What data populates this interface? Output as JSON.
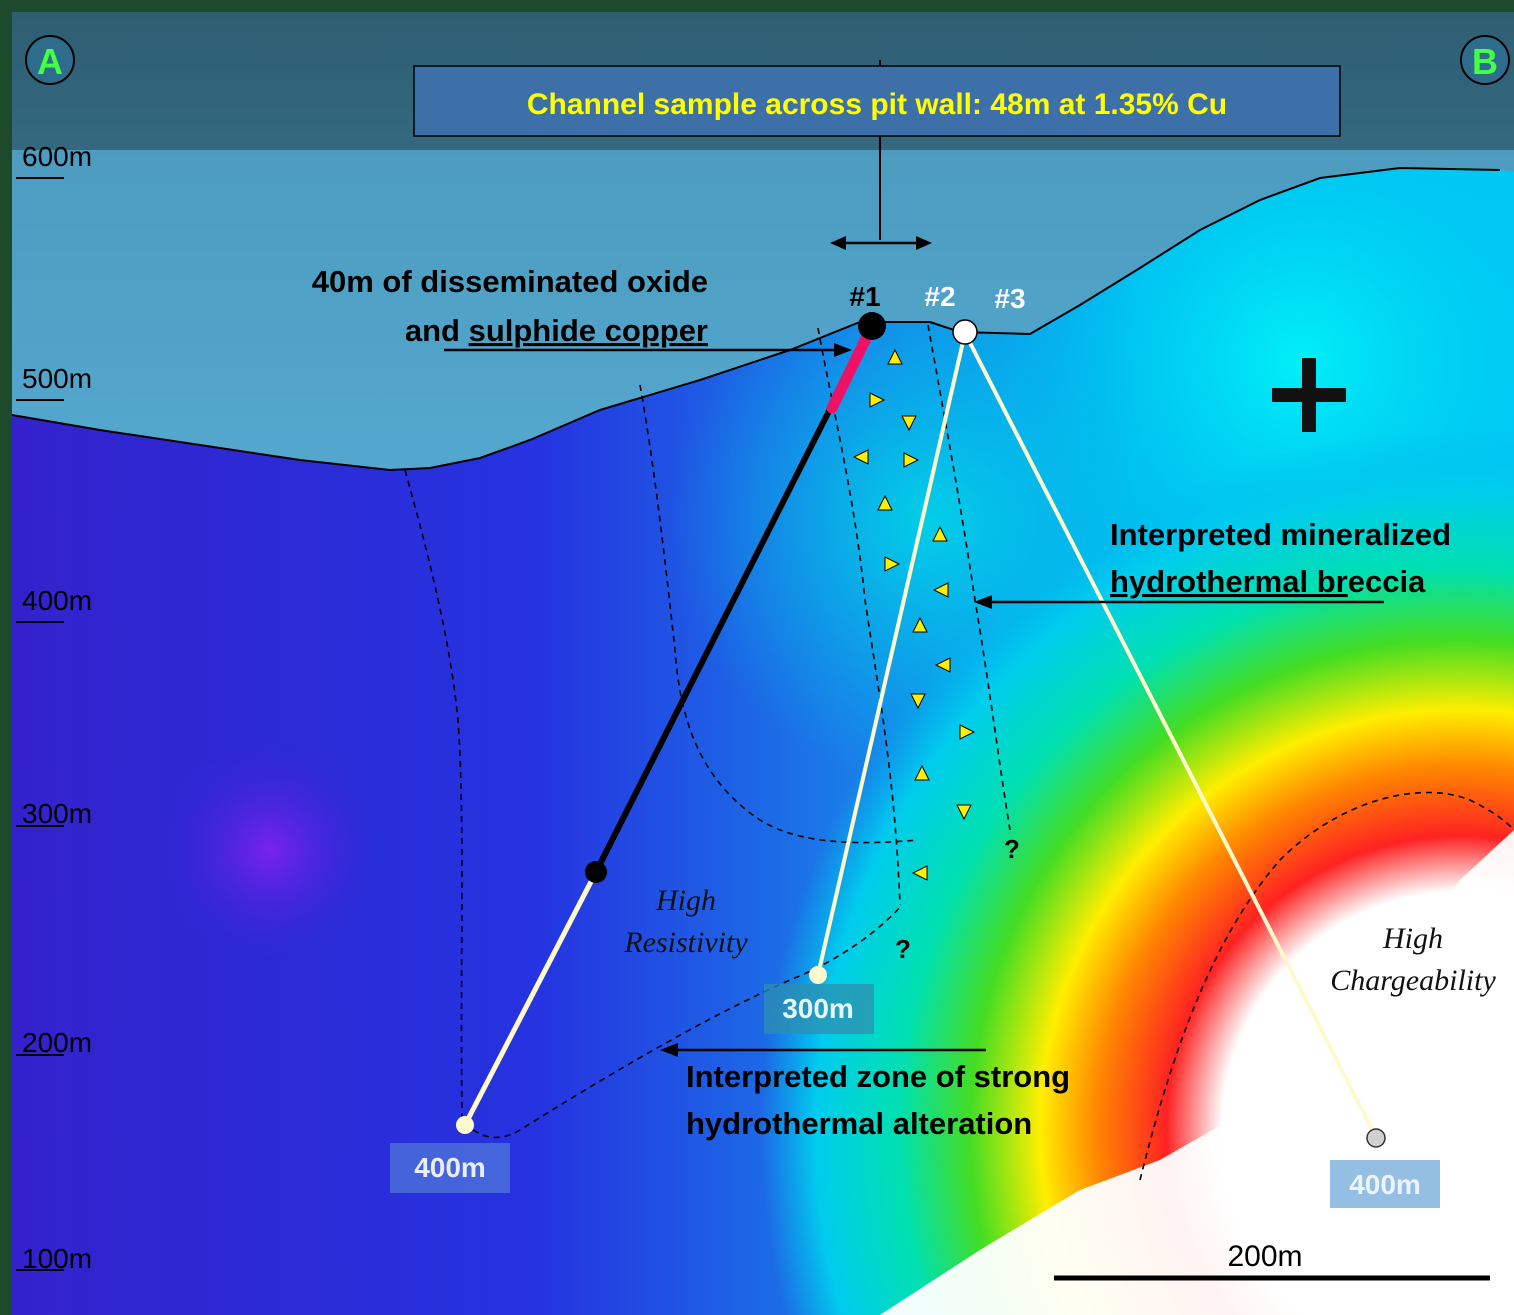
{
  "markers": {
    "a": "A",
    "b": "B"
  },
  "elevations": [
    "600m",
    "500m",
    "400m",
    "300m",
    "200m",
    "100m"
  ],
  "callouts": {
    "channel_sample": "Channel sample across pit wall: 48m at 1.35% Cu",
    "disseminated_line1": "40m of disseminated oxide",
    "disseminated_line2_prefix": "and ",
    "disseminated_line2_underlined": "sulphide copper",
    "breccia_line1": "Interpreted mineralized",
    "breccia_line2_underlined": "hydrothermal br",
    "breccia_line2_rest": "eccia",
    "alteration_line1": "Interpreted zone of strong",
    "alteration_line2": "hydrothermal alteration"
  },
  "drillholes": [
    {
      "id": "#1",
      "depth_label": "400m"
    },
    {
      "id": "#2",
      "depth_label": "300m"
    },
    {
      "id": "#3",
      "depth_label": "400m"
    }
  ],
  "zones": {
    "resistivity_line1": "High",
    "resistivity_line2": "Resistivity",
    "chargeability_line1": "High",
    "chargeability_line2": "Chargeability"
  },
  "uncertainty_mark": "?",
  "scale_bar": {
    "label": "200m"
  },
  "colors": {
    "sky": "#63c6f6",
    "label_yellow": "#ffff00",
    "mineralized_interval": "#ee1166",
    "drill_trace": "#fffacd",
    "breccia_clast": "#ffee00",
    "frame_green": "#1e4a2c"
  }
}
